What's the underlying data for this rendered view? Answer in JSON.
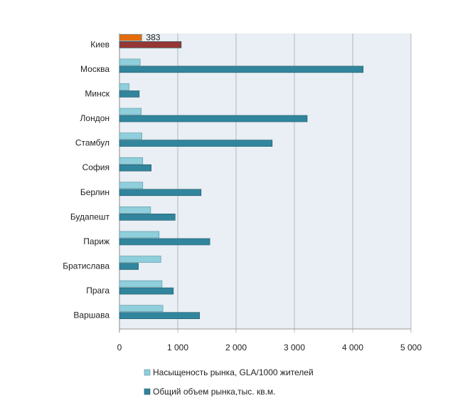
{
  "chart_data": {
    "type": "bar",
    "orientation": "horizontal",
    "title": "",
    "categories": [
      "Киев",
      "Москва",
      "Минск",
      "Лондон",
      "Стамбул",
      "София",
      "Берлин",
      "Будапешт",
      "Париж",
      "Братислава",
      "Прага",
      "Варшава"
    ],
    "series": [
      {
        "name": "Насыщеность рынка, GLA/1000 жителей",
        "color": "#8ecfdb",
        "values": [
          383,
          355,
          165,
          375,
          385,
          400,
          400,
          535,
          680,
          710,
          730,
          745
        ]
      },
      {
        "name": "Общий объем рынка,тыс. кв.м.",
        "color": "#31859c",
        "values": [
          1060,
          4180,
          340,
          3220,
          2620,
          545,
          1400,
          955,
          1550,
          325,
          925,
          1375
        ]
      }
    ],
    "highlight": {
      "category": "Киев",
      "colors": [
        "#e46c0a",
        "#953735"
      ],
      "data_label": "383"
    },
    "x_ticks": [
      "0",
      "1 000",
      "2 000",
      "3 000",
      "4 000",
      "5 000"
    ],
    "xlim": [
      0,
      5000
    ],
    "grid": "vertical",
    "legend_position": "bottom"
  }
}
